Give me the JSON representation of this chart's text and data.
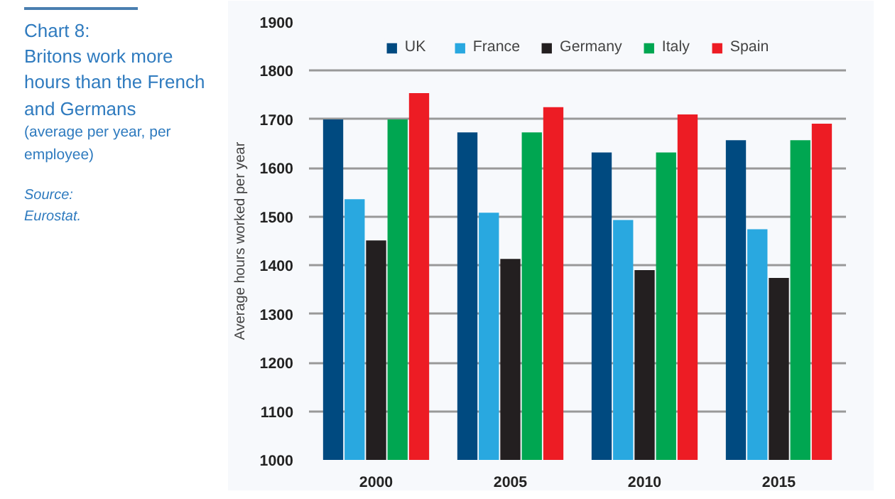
{
  "chart_data": {
    "type": "bar",
    "title": "Chart 8:\nBritons work more hours than the French and Germans",
    "subtitle": "(average per year, per employee)",
    "annotations": [
      "Source: Eurostat."
    ],
    "ylabel": "Average hours worked per year",
    "categories": [
      "2000",
      "2005",
      "2010",
      "2015"
    ],
    "series": [
      {
        "name": "UK",
        "color": "#004a80",
        "values": [
          1700,
          1673,
          1632,
          1657
        ]
      },
      {
        "name": "France",
        "color": "#29a8e0",
        "values": [
          1536,
          1508,
          1493,
          1474
        ]
      },
      {
        "name": "Germany",
        "color": "#231f20",
        "values": [
          1451,
          1413,
          1390,
          1374
        ]
      },
      {
        "name": "Italy",
        "color": "#00a651",
        "values": [
          1700,
          1673,
          1632,
          1657
        ]
      },
      {
        "name": "Spain",
        "color": "#ed1c24",
        "values": [
          1754,
          1725,
          1710,
          1691
        ]
      }
    ],
    "ylim": [
      1000,
      1900
    ],
    "yticks": [
      1000,
      1100,
      1200,
      1300,
      1400,
      1500,
      1600,
      1700,
      1800,
      1900
    ],
    "grid": "y",
    "legend": "top"
  }
}
